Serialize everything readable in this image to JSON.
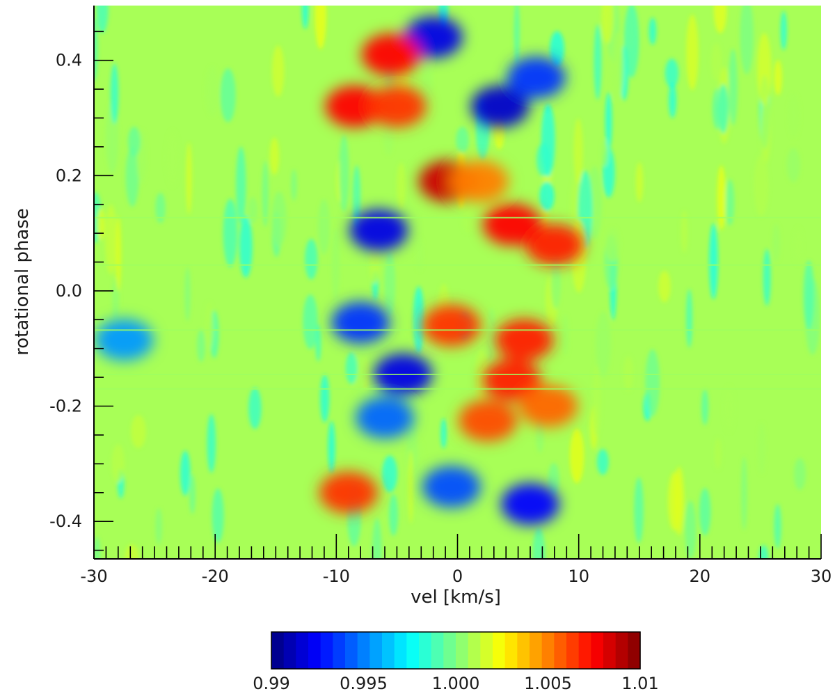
{
  "chart_data": {
    "type": "heatmap",
    "title": "",
    "xlabel": "vel [km/s]",
    "ylabel": "rotational phase",
    "xlim": [
      -30,
      30
    ],
    "ylim": [
      -0.465,
      0.495
    ],
    "x_ticks": [
      -30,
      -20,
      -10,
      0,
      10,
      20,
      30
    ],
    "x_tick_labels": [
      "-30",
      "-20",
      "-10",
      "0",
      "10",
      "20",
      "30"
    ],
    "y_ticks": [
      -0.4,
      -0.2,
      0.0,
      0.2,
      0.4
    ],
    "y_tick_labels": [
      "-0.4",
      "-0.2",
      "0.0",
      "0.2",
      "0.4"
    ],
    "colorbar": {
      "vmin": 0.99,
      "vmax": 1.01,
      "levels": 30,
      "colormap": "jet",
      "tick_values": [
        0.99,
        0.995,
        1.0,
        1.005,
        1.01
      ],
      "tick_labels": [
        "0.99",
        "0.995",
        "1.000",
        "1.005",
        "1.01"
      ]
    },
    "background_value": 1.0008,
    "observation_gaps_phase": [
      0.045,
      0.127,
      -0.068,
      -0.145,
      -0.17
    ],
    "features": [
      {
        "vel": -8.5,
        "phase": 0.32,
        "value": 1.0075
      },
      {
        "vel": -5.0,
        "phase": 0.32,
        "value": 1.0065
      },
      {
        "vel": 3.5,
        "phase": 0.32,
        "value": 0.9915
      },
      {
        "vel": 6.5,
        "phase": 0.37,
        "value": 0.9935
      },
      {
        "vel": -0.8,
        "phase": 0.19,
        "value": 1.0085
      },
      {
        "vel": 1.8,
        "phase": 0.19,
        "value": 1.005
      },
      {
        "vel": -6.5,
        "phase": 0.105,
        "value": 0.992
      },
      {
        "vel": 4.5,
        "phase": 0.115,
        "value": 1.0075
      },
      {
        "vel": 8.0,
        "phase": 0.08,
        "value": 1.007
      },
      {
        "vel": -8.0,
        "phase": -0.055,
        "value": 0.9935
      },
      {
        "vel": -0.5,
        "phase": -0.06,
        "value": 1.0065
      },
      {
        "vel": 5.5,
        "phase": -0.085,
        "value": 1.007
      },
      {
        "vel": -27.5,
        "phase": -0.085,
        "value": 0.9955
      },
      {
        "vel": -4.5,
        "phase": -0.145,
        "value": 0.992
      },
      {
        "vel": 4.5,
        "phase": -0.155,
        "value": 1.007
      },
      {
        "vel": 7.5,
        "phase": -0.2,
        "value": 1.0055
      },
      {
        "vel": 2.5,
        "phase": -0.225,
        "value": 1.006
      },
      {
        "vel": -6.0,
        "phase": -0.22,
        "value": 0.9945
      },
      {
        "vel": -9.0,
        "phase": -0.35,
        "value": 1.0065
      },
      {
        "vel": -0.5,
        "phase": -0.34,
        "value": 0.994
      },
      {
        "vel": 6.0,
        "phase": -0.37,
        "value": 0.9925
      },
      {
        "vel": -2.0,
        "phase": 0.44,
        "value": 0.992
      },
      {
        "vel": -5.5,
        "phase": 0.41,
        "value": 1.0075
      }
    ]
  }
}
